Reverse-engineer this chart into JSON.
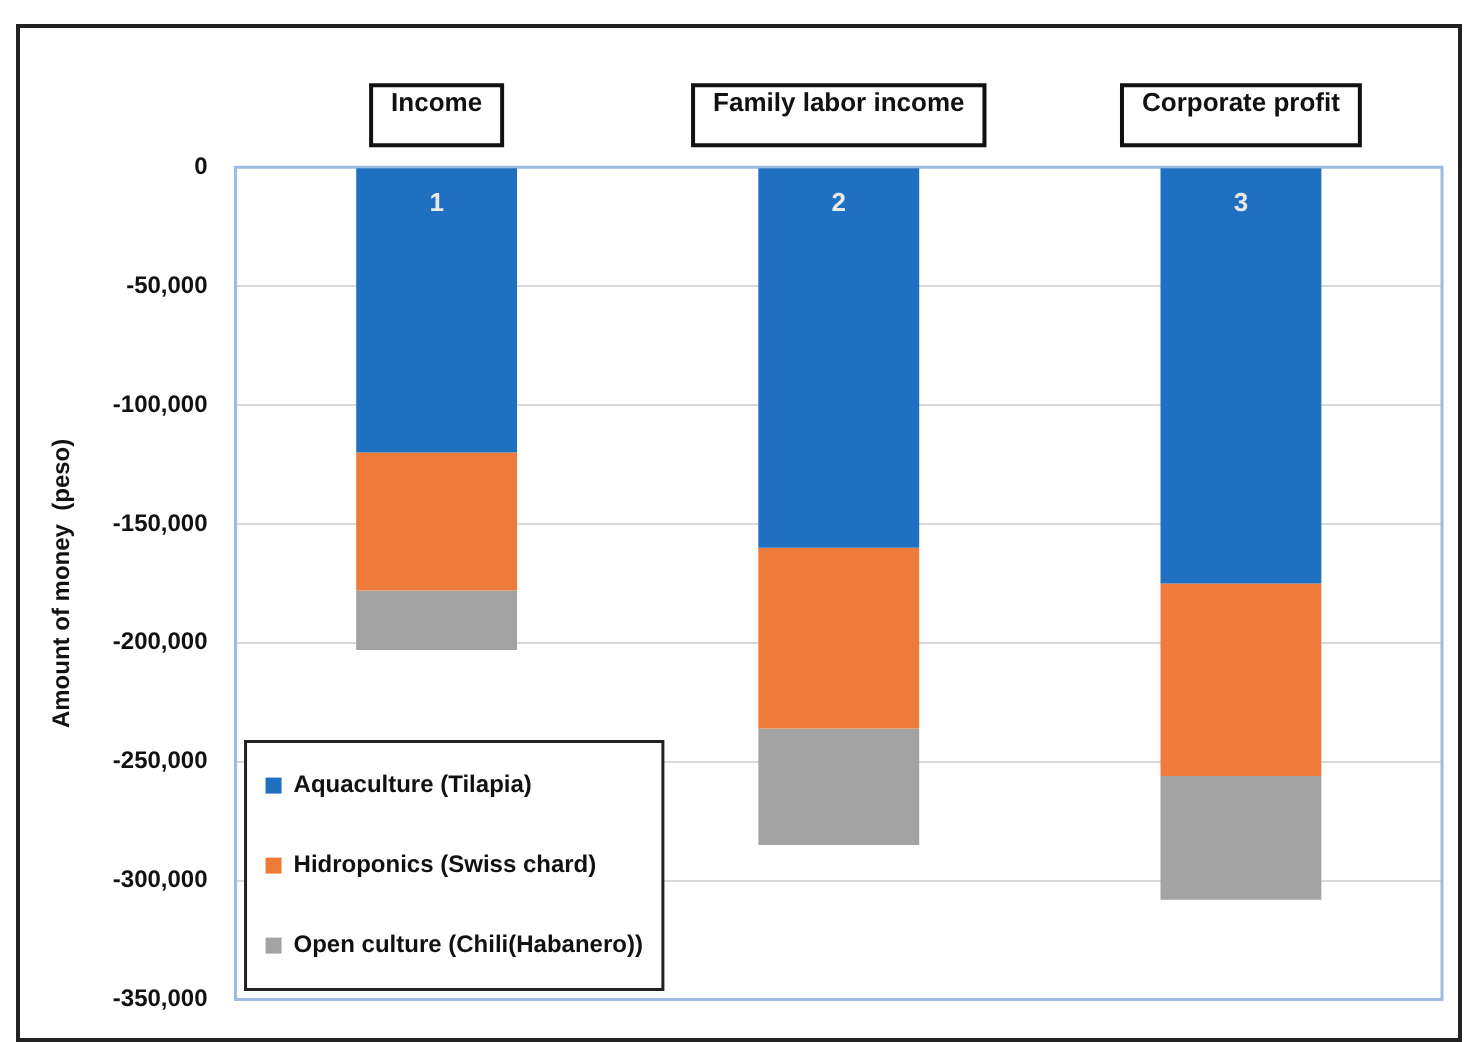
{
  "chart_data": {
    "type": "bar",
    "stacked": true,
    "ylabel": "Amount of money  (peso)",
    "categories": [
      "Income",
      "Family labor income",
      "Corporate profit"
    ],
    "series": [
      {
        "name": "Aquaculture (Tilapia)",
        "color": "#1f70c1",
        "values": [
          -120000,
          -160000,
          -175000
        ]
      },
      {
        "name": "Hidroponics (Swiss chard)",
        "color": "#ef7b3a",
        "values": [
          -58000,
          -76000,
          -81000
        ]
      },
      {
        "name": "Open culture (Chili(Habanero))",
        "color": "#a3a3a3",
        "values": [
          -25000,
          -49000,
          -52000
        ]
      }
    ],
    "ylim": [
      -350000,
      0
    ],
    "yticks": [
      {
        "value": 0,
        "label": "0"
      },
      {
        "value": -50000,
        "label": "-50,000"
      },
      {
        "value": -100000,
        "label": "-100,000"
      },
      {
        "value": -150000,
        "label": "-150,000"
      },
      {
        "value": -200000,
        "label": "-200,000"
      },
      {
        "value": -250000,
        "label": "-250,000"
      },
      {
        "value": -300000,
        "label": "-300,000"
      },
      {
        "value": -350000,
        "label": "-350,000"
      }
    ],
    "grid": "y",
    "legend": "bottom left",
    "annotations": [
      "1",
      "2",
      "3"
    ]
  }
}
